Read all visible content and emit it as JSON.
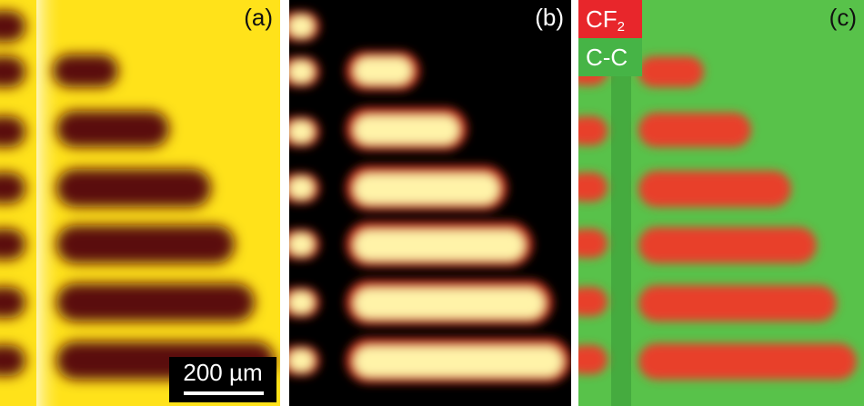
{
  "panels": {
    "a": {
      "label": "(a)"
    },
    "b": {
      "label": "(b)"
    },
    "c": {
      "label": "(c)"
    }
  },
  "scale_bar": {
    "text": "200 µm"
  },
  "legend": {
    "red": {
      "main": "CF",
      "sub": "2"
    },
    "green": {
      "label": "C-C"
    }
  },
  "colors": {
    "a_background": "#ffe21a",
    "a_stripe": "#4a0c0a",
    "b_background": "#000000",
    "b_stripe": "#fff2a0",
    "c_background": "#58c24a",
    "c_stripe": "#e8402c",
    "legend_red": "#e8262b",
    "legend_green": "#46b446"
  }
}
